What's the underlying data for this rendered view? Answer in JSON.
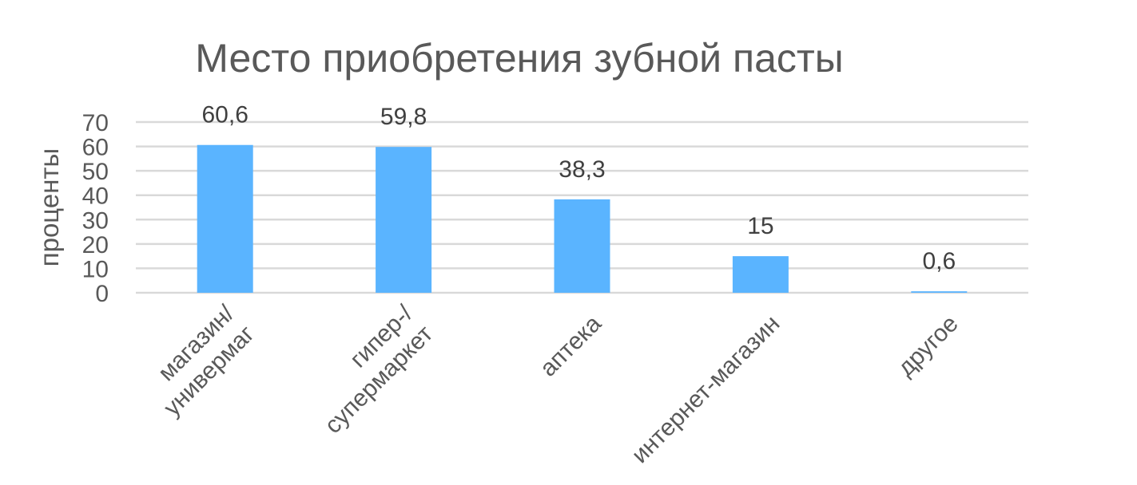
{
  "chart_data": {
    "type": "bar",
    "title": "Место приобретения зубной пасты",
    "ylabel": "проценты",
    "xlabel": "",
    "ylim": [
      0,
      70
    ],
    "yticks": [
      0,
      10,
      20,
      30,
      40,
      50,
      60,
      70
    ],
    "grid": true,
    "categories": [
      [
        "магазин/",
        "универмаг"
      ],
      [
        "гипер-/",
        "супермаркет"
      ],
      [
        "аптека"
      ],
      [
        "интернет-магазин"
      ],
      [
        "другое"
      ]
    ],
    "values": [
      60.6,
      59.8,
      38.3,
      15,
      0.6
    ],
    "data_labels": [
      "60,6",
      "59,8",
      "38,3",
      "15",
      "0,6"
    ],
    "bar_color": "#5AB4FF"
  }
}
